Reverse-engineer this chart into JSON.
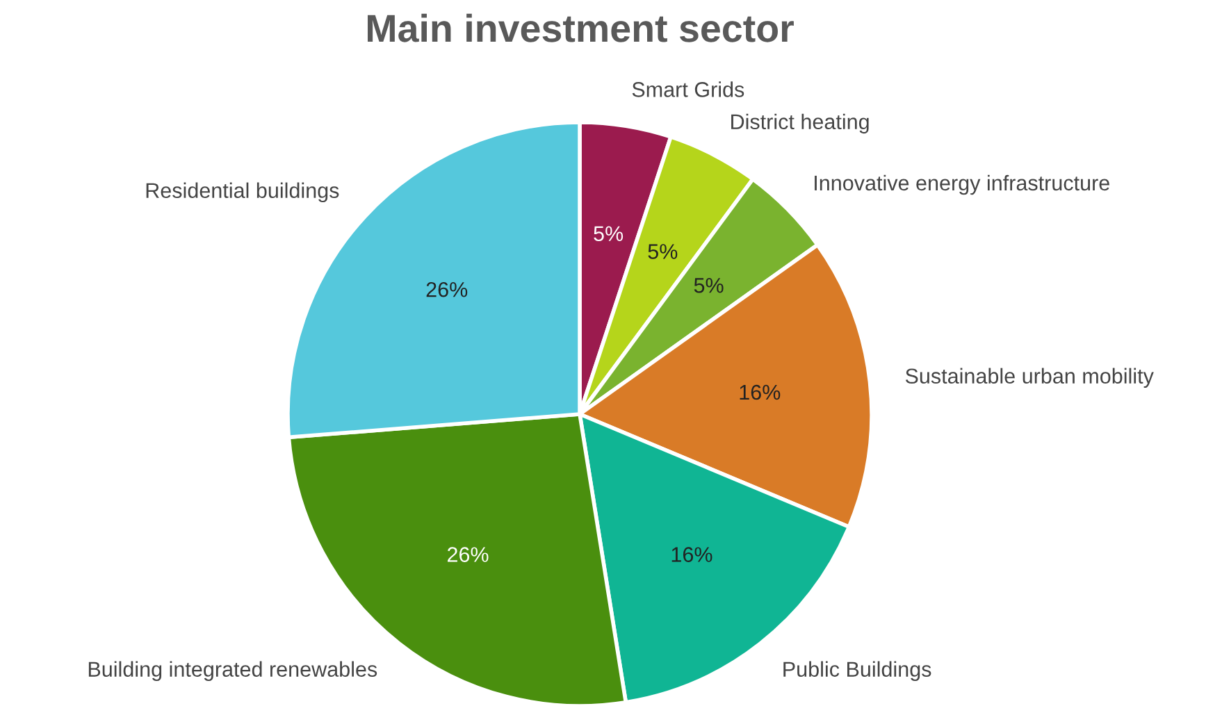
{
  "chart_data": {
    "type": "pie",
    "title": "Main investment sector",
    "categories": [
      "Smart Grids",
      "District heating",
      "Innovative energy infrastructure",
      "Sustainable urban mobility",
      "Public Buildings",
      "Building integrated renewables",
      "Residential buildings"
    ],
    "values": [
      5,
      5,
      5,
      16,
      16,
      26,
      26
    ],
    "colors": [
      "#9b1b4e",
      "#b5d51b",
      "#7ab32f",
      "#d97b27",
      "#10b594",
      "#4a8f0e",
      "#55c8dc"
    ],
    "value_labels": [
      "5%",
      "5%",
      "5%",
      "16%",
      "16%",
      "26%",
      "26%"
    ],
    "legend": false
  }
}
